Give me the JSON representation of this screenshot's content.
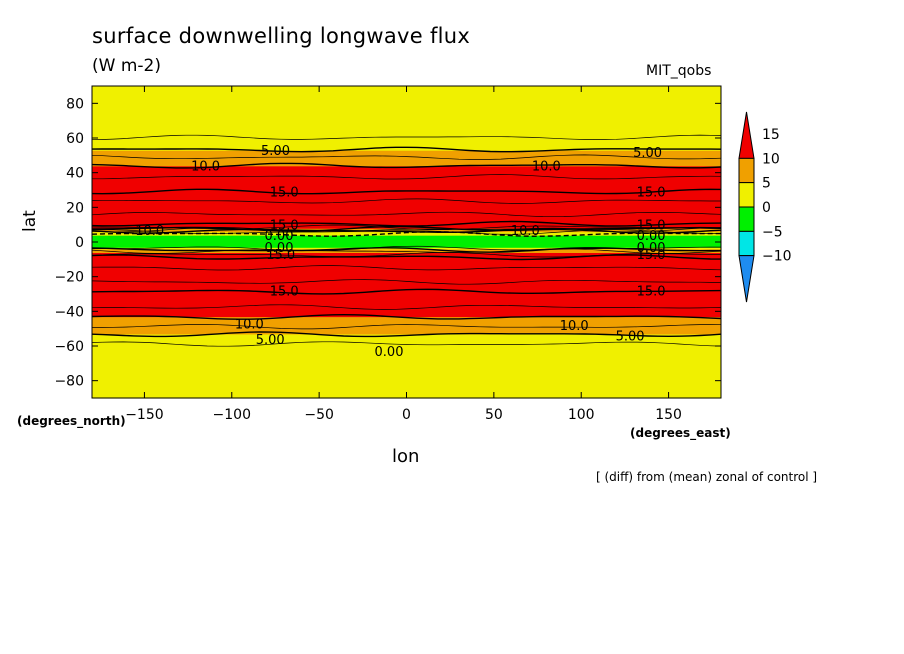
{
  "title": "surface downwelling longwave flux",
  "units": "(W m-2)",
  "model_label": "MIT_qobs",
  "note": "[ (diff) from (mean) zonal of control ]",
  "chart_data": {
    "type": "heatmap",
    "xlabel": "lon",
    "ylabel": "lat",
    "x_unit_label": "(degrees_east)",
    "y_unit_label": "(degrees_north)",
    "xlim": [
      -180,
      180
    ],
    "ylim": [
      -90,
      90
    ],
    "xticks": [
      -150,
      -100,
      -50,
      0,
      50,
      100,
      150
    ],
    "yticks": [
      -80,
      -60,
      -40,
      -20,
      0,
      20,
      40,
      60,
      80
    ],
    "colorbar": {
      "levels": [
        -10,
        -5,
        0,
        5,
        10,
        15
      ],
      "labels": [
        "15",
        "10",
        "5",
        "0",
        "−5",
        "−10"
      ],
      "colors": [
        "#1e8cf0",
        "#00e6e6",
        "#00f000",
        "#f0f000",
        "#f0a000",
        "#f00000"
      ]
    },
    "zonal_profile": [
      {
        "lat": -90,
        "value": 0
      },
      {
        "lat": -80,
        "value": 1
      },
      {
        "lat": -70,
        "value": 1
      },
      {
        "lat": -60,
        "value": 2
      },
      {
        "lat": -55,
        "value": 4
      },
      {
        "lat": -50,
        "value": 7
      },
      {
        "lat": -45,
        "value": 9
      },
      {
        "lat": -40,
        "value": 12
      },
      {
        "lat": -30,
        "value": 14
      },
      {
        "lat": -26,
        "value": 17
      },
      {
        "lat": -20,
        "value": 18
      },
      {
        "lat": -10,
        "value": 17
      },
      {
        "lat": -6,
        "value": 10
      },
      {
        "lat": -3,
        "value": 0
      },
      {
        "lat": 0,
        "value": -3
      },
      {
        "lat": 3,
        "value": -3
      },
      {
        "lat": 6,
        "value": 3
      },
      {
        "lat": 8,
        "value": 12
      },
      {
        "lat": 12,
        "value": 17
      },
      {
        "lat": 20,
        "value": 18
      },
      {
        "lat": 27,
        "value": 17
      },
      {
        "lat": 30,
        "value": 14
      },
      {
        "lat": 40,
        "value": 12
      },
      {
        "lat": 48,
        "value": 8
      },
      {
        "lat": 55,
        "value": 4
      },
      {
        "lat": 62,
        "value": 2
      },
      {
        "lat": 70,
        "value": 1
      },
      {
        "lat": 80,
        "value": 2
      },
      {
        "lat": 90,
        "value": 1
      }
    ],
    "contour_labels": [
      {
        "text": "5.00",
        "lon": -75,
        "lat": 53
      },
      {
        "text": "10.0",
        "lon": -115,
        "lat": 44
      },
      {
        "text": "15.0",
        "lon": -70,
        "lat": 29
      },
      {
        "text": "10.0",
        "lon": -147,
        "lat": 7
      },
      {
        "text": "15.0",
        "lon": -70,
        "lat": 10
      },
      {
        "text": "0.00",
        "lon": -73,
        "lat": 4
      },
      {
        "text": "0.00",
        "lon": -73,
        "lat": -3
      },
      {
        "text": "15.0",
        "lon": -72,
        "lat": -7
      },
      {
        "text": "15.0",
        "lon": -70,
        "lat": -28
      },
      {
        "text": "10.0",
        "lon": -90,
        "lat": -47
      },
      {
        "text": "5.00",
        "lon": -78,
        "lat": -56
      },
      {
        "text": "0.00",
        "lon": -10,
        "lat": -63
      },
      {
        "text": "10.0",
        "lon": 80,
        "lat": 44
      },
      {
        "text": "5.00",
        "lon": 138,
        "lat": 52
      },
      {
        "text": "15.0",
        "lon": 140,
        "lat": 29
      },
      {
        "text": "10.0",
        "lon": 68,
        "lat": 7
      },
      {
        "text": "15.0",
        "lon": 140,
        "lat": 10
      },
      {
        "text": "0.00",
        "lon": 140,
        "lat": 4
      },
      {
        "text": "0.00",
        "lon": 140,
        "lat": -3
      },
      {
        "text": "15.0",
        "lon": 140,
        "lat": -7
      },
      {
        "text": "15.0",
        "lon": 140,
        "lat": -28
      },
      {
        "text": "10.0",
        "lon": 96,
        "lat": -48
      },
      {
        "text": "5.00",
        "lon": 128,
        "lat": -54
      }
    ]
  }
}
